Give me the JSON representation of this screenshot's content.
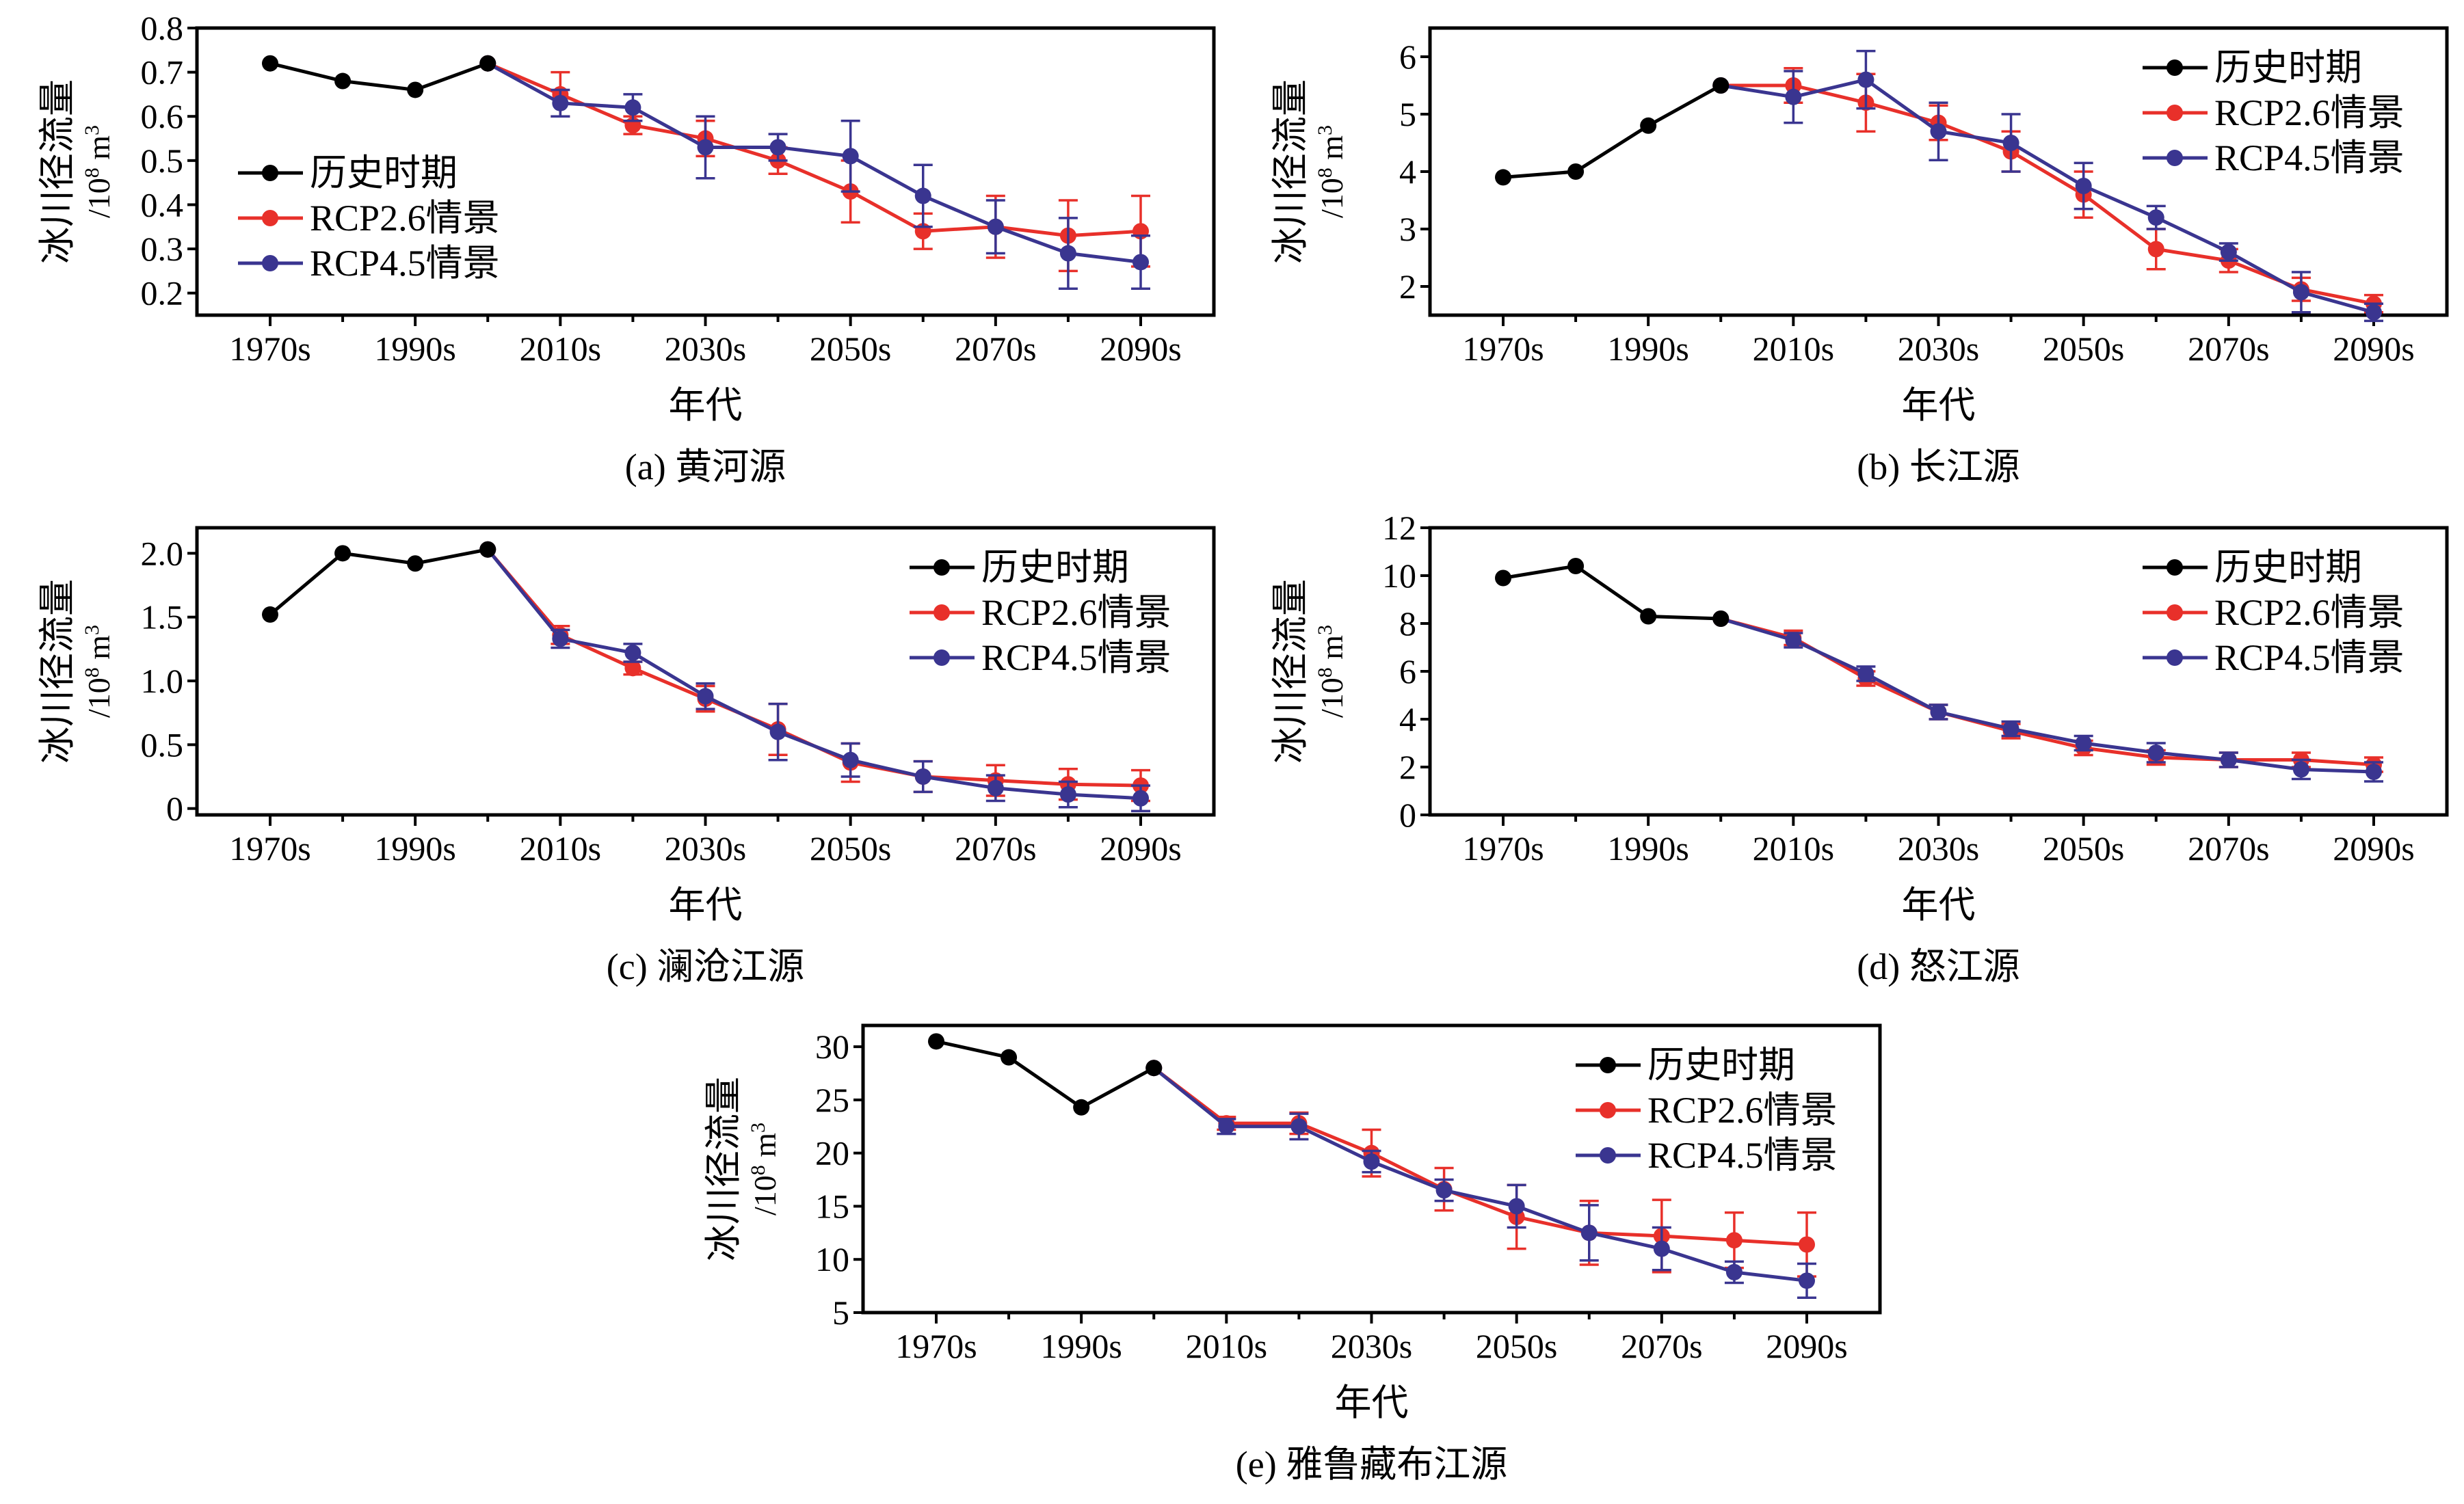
{
  "common": {
    "decades": [
      "1970s",
      "1980s",
      "1990s",
      "2000s",
      "2010s",
      "2020s",
      "2030s",
      "2040s",
      "2050s",
      "2060s",
      "2070s",
      "2080s",
      "2090s"
    ],
    "tick_labels": [
      "1970s",
      "1990s",
      "2010s",
      "2030s",
      "2050s",
      "2070s",
      "2090s"
    ],
    "xlabel": "年代",
    "ylabel": "冰川径流量",
    "yunit_prefix": "/10",
    "yunit_exp": "8",
    "yunit_base": " m",
    "yunit_exp2": "3",
    "legend_labels": [
      "历史时期",
      "RCP2.6情景",
      "RCP4.5情景"
    ],
    "colors": {
      "hist": "#000000",
      "rcp26": "#e8302a",
      "rcp45": "#3a3590"
    }
  },
  "chart_data": [
    {
      "type": "line",
      "caption": "(a) 黄河源",
      "ylim": [
        0.15,
        0.8
      ],
      "yticks": [
        0.2,
        0.3,
        0.4,
        0.5,
        0.6,
        0.7,
        0.8
      ],
      "ytick_labels": [
        "0.2",
        "0.3",
        "0.4",
        "0.5",
        "0.6",
        "0.7",
        "0.8"
      ],
      "legend_position": "left",
      "series": [
        {
          "name": "历史时期",
          "values": [
            0.72,
            0.68,
            0.66,
            0.72,
            null,
            null,
            null,
            null,
            null,
            null,
            null,
            null,
            null
          ]
        },
        {
          "name": "RCP2.6情景",
          "values": [
            null,
            null,
            null,
            0.72,
            0.65,
            0.58,
            0.55,
            0.5,
            0.43,
            0.34,
            0.35,
            0.33,
            0.34
          ],
          "errors": [
            0,
            0,
            0,
            0,
            0.05,
            0.02,
            0.04,
            0.03,
            0.07,
            0.04,
            0.07,
            0.08,
            0.08
          ]
        },
        {
          "name": "RCP4.5情景",
          "values": [
            null,
            null,
            null,
            0.72,
            0.63,
            0.62,
            0.53,
            0.53,
            0.51,
            0.42,
            0.35,
            0.29,
            0.27
          ],
          "errors": [
            0,
            0,
            0,
            0,
            0.03,
            0.03,
            0.07,
            0.03,
            0.08,
            0.07,
            0.06,
            0.08,
            0.06
          ]
        }
      ]
    },
    {
      "type": "line",
      "caption": "(b) 长江源",
      "ylim": [
        1.5,
        6.5
      ],
      "yticks": [
        2,
        3,
        4,
        5,
        6
      ],
      "ytick_labels": [
        "2",
        "3",
        "4",
        "5",
        "6"
      ],
      "legend_position": "top-right",
      "series": [
        {
          "name": "历史时期",
          "values": [
            3.9,
            4.0,
            4.8,
            5.5,
            null,
            null,
            null,
            null,
            null,
            null,
            null,
            null,
            null
          ]
        },
        {
          "name": "RCP2.6情景",
          "values": [
            null,
            null,
            null,
            5.5,
            5.5,
            5.2,
            4.85,
            4.35,
            3.6,
            2.65,
            2.45,
            1.95,
            1.7
          ],
          "errors": [
            0,
            0,
            0,
            0,
            0.3,
            0.5,
            0.3,
            0.35,
            0.4,
            0.35,
            0.2,
            0.2,
            0.15
          ]
        },
        {
          "name": "RCP4.5情景",
          "values": [
            null,
            null,
            null,
            5.5,
            5.3,
            5.6,
            4.7,
            4.5,
            3.75,
            3.2,
            2.6,
            1.9,
            1.55
          ],
          "errors": [
            0,
            0,
            0,
            0,
            0.45,
            0.5,
            0.5,
            0.5,
            0.4,
            0.2,
            0.15,
            0.35,
            0.15
          ]
        }
      ]
    },
    {
      "type": "line",
      "caption": "(c) 澜沧江源",
      "ylim": [
        -0.05,
        2.2
      ],
      "yticks": [
        0,
        0.5,
        1.0,
        1.5,
        2.0
      ],
      "ytick_labels": [
        "0",
        "0.5",
        "1.0",
        "1.5",
        "2.0"
      ],
      "legend_position": "top-right",
      "series": [
        {
          "name": "历史时期",
          "values": [
            1.52,
            2.0,
            1.92,
            2.03,
            null,
            null,
            null,
            null,
            null,
            null,
            null,
            null,
            null
          ]
        },
        {
          "name": "RCP2.6情景",
          "values": [
            null,
            null,
            null,
            2.03,
            1.36,
            1.1,
            0.86,
            0.62,
            0.36,
            0.25,
            0.22,
            0.19,
            0.18
          ],
          "errors": [
            0,
            0,
            0,
            0,
            0.07,
            0.05,
            0.1,
            0.2,
            0.15,
            0.12,
            0.12,
            0.12,
            0.12
          ]
        },
        {
          "name": "RCP4.5情景",
          "values": [
            null,
            null,
            null,
            2.03,
            1.33,
            1.22,
            0.88,
            0.6,
            0.38,
            0.25,
            0.16,
            0.11,
            0.08
          ],
          "errors": [
            0,
            0,
            0,
            0,
            0.07,
            0.07,
            0.1,
            0.22,
            0.13,
            0.12,
            0.1,
            0.1,
            0.1
          ]
        }
      ]
    },
    {
      "type": "line",
      "caption": "(d) 怒江源",
      "ylim": [
        0,
        12
      ],
      "yticks": [
        0,
        2,
        4,
        6,
        8,
        10,
        12
      ],
      "ytick_labels": [
        "0",
        "2",
        "4",
        "6",
        "8",
        "10",
        "12"
      ],
      "legend_position": "top-right",
      "series": [
        {
          "name": "历史时期",
          "values": [
            9.9,
            10.4,
            8.3,
            8.2,
            null,
            null,
            null,
            null,
            null,
            null,
            null,
            null,
            null
          ]
        },
        {
          "name": "RCP2.6情景",
          "values": [
            null,
            null,
            null,
            8.2,
            7.4,
            5.7,
            4.3,
            3.5,
            2.8,
            2.4,
            2.3,
            2.3,
            2.1
          ],
          "errors": [
            0,
            0,
            0,
            0,
            0.3,
            0.3,
            0.3,
            0.3,
            0.3,
            0.3,
            0.3,
            0.3,
            0.3
          ]
        },
        {
          "name": "RCP4.5情景",
          "values": [
            null,
            null,
            null,
            8.2,
            7.3,
            5.9,
            4.3,
            3.6,
            3.0,
            2.6,
            2.3,
            1.9,
            1.8
          ],
          "errors": [
            0,
            0,
            0,
            0,
            0.3,
            0.3,
            0.3,
            0.3,
            0.3,
            0.4,
            0.3,
            0.4,
            0.4
          ]
        }
      ]
    },
    {
      "type": "line",
      "caption": "(e) 雅鲁藏布江源",
      "ylim": [
        5,
        32
      ],
      "yticks": [
        5,
        10,
        15,
        20,
        25,
        30
      ],
      "ytick_labels": [
        "5",
        "10",
        "15",
        "20",
        "25",
        "30"
      ],
      "legend_position": "top-right",
      "series": [
        {
          "name": "历史时期",
          "values": [
            30.5,
            29.0,
            24.3,
            28.0,
            null,
            null,
            null,
            null,
            null,
            null,
            null,
            null,
            null
          ]
        },
        {
          "name": "RCP2.6情景",
          "values": [
            null,
            null,
            null,
            28.0,
            22.8,
            22.8,
            20.0,
            16.6,
            14.0,
            12.5,
            12.2,
            11.8,
            11.4
          ],
          "errors": [
            0,
            0,
            0,
            0,
            0.6,
            1.0,
            2.2,
            2.0,
            3.0,
            3.0,
            3.4,
            2.6,
            3.0
          ]
        },
        {
          "name": "RCP4.5情景",
          "values": [
            null,
            null,
            null,
            28.0,
            22.5,
            22.5,
            19.2,
            16.5,
            15.0,
            12.5,
            11.0,
            8.8,
            8.0
          ],
          "errors": [
            0,
            0,
            0,
            0,
            0.7,
            1.2,
            1.0,
            1.0,
            2.0,
            2.6,
            2.0,
            1.0,
            1.6
          ]
        }
      ]
    }
  ]
}
